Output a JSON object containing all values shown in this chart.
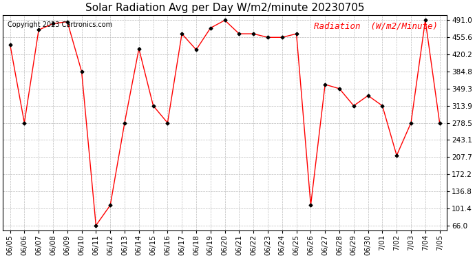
{
  "title": "Solar Radiation Avg per Day W/m2/minute 20230705",
  "copyright": "Copyright 2023 Cartronics.com",
  "legend_label": "Radiation  (W/m2/Minute)",
  "dates": [
    "06/05",
    "06/06",
    "06/07",
    "06/08",
    "06/09",
    "06/10",
    "06/11",
    "06/12",
    "06/13",
    "06/14",
    "06/15",
    "06/16",
    "06/17",
    "06/18",
    "06/19",
    "06/20",
    "06/21",
    "06/22",
    "06/23",
    "06/24",
    "06/25",
    "06/26",
    "06/27",
    "06/28",
    "06/29",
    "06/30",
    "7/01",
    "7/02",
    "7/03",
    "7/04",
    "7/05"
  ],
  "values": [
    441.0,
    278.5,
    471.0,
    484.0,
    488.0,
    384.8,
    66.0,
    108.0,
    278.5,
    432.0,
    313.9,
    278.5,
    463.0,
    430.0,
    475.0,
    491.0,
    463.0,
    463.0,
    455.6,
    455.6,
    463.0,
    108.0,
    358.0,
    349.3,
    313.9,
    335.0,
    313.9,
    211.0,
    278.5,
    491.0,
    278.5
  ],
  "yticks": [
    66.0,
    101.4,
    136.8,
    172.2,
    207.7,
    243.1,
    278.5,
    313.9,
    349.3,
    384.8,
    420.2,
    455.6,
    491.0
  ],
  "line_color": "red",
  "marker_color": "black",
  "grid_color": "#bbbbbb",
  "background_color": "#ffffff",
  "title_color": "black",
  "copyright_color": "black",
  "legend_color": "red",
  "ylim": [
    55.0,
    502.0
  ],
  "title_fontsize": 11,
  "tick_fontsize": 7.5,
  "legend_fontsize": 9,
  "copyright_fontsize": 7
}
